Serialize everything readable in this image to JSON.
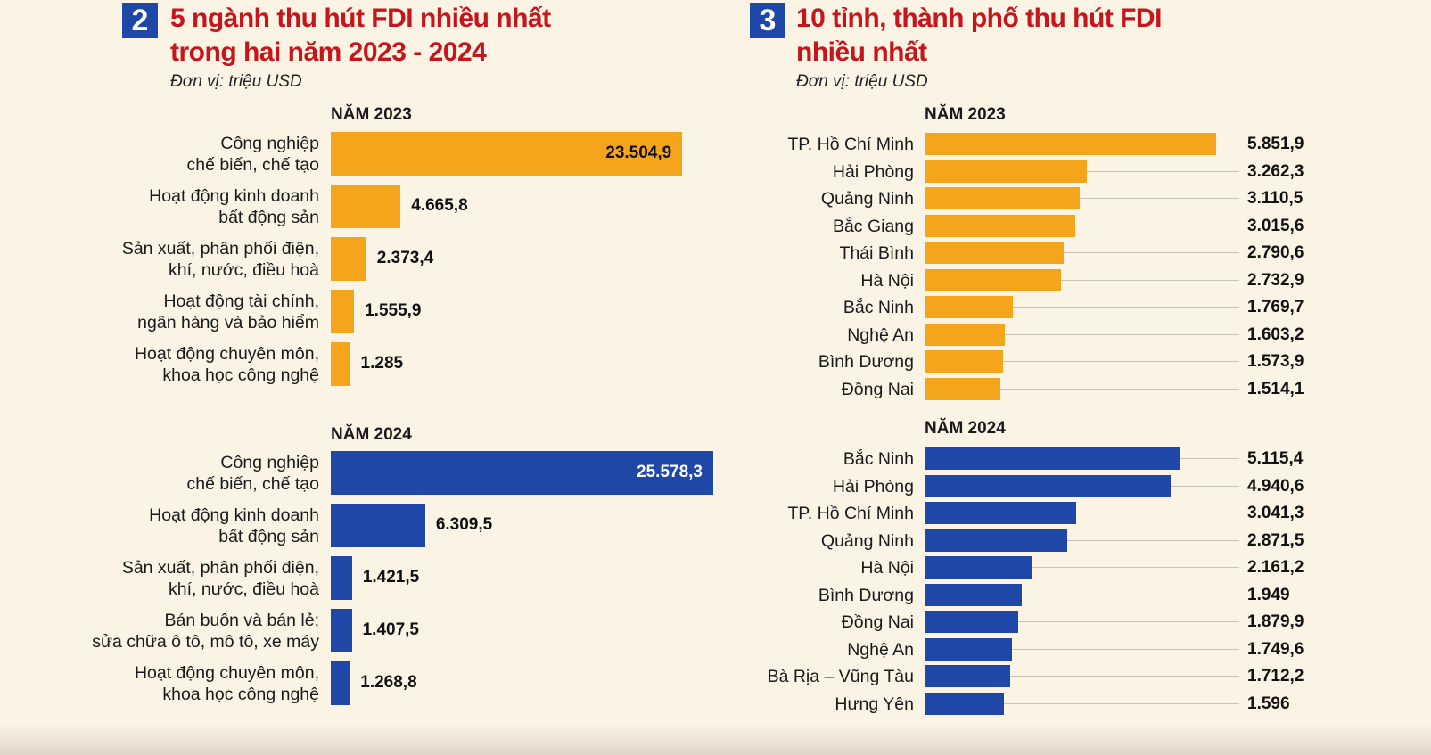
{
  "colors": {
    "y2023": "#f5a51c",
    "y2024": "#1f47a8",
    "title": "#c4161c"
  },
  "left_panel": {
    "number": "2",
    "title_line1": "5 ngành thu hút FDI nhiều nhất",
    "title_line2": "trong hai năm 2023 - 2024",
    "unit": "Đơn vị: triệu USD"
  },
  "right_panel": {
    "number": "3",
    "title_line1": "10 tỉnh, thành phố thu hút FDI",
    "title_line2": "nhiều nhất",
    "unit": "Đơn vị: triệu USD"
  },
  "chart_data": [
    {
      "type": "bar",
      "orientation": "horizontal",
      "title": "NĂM 2023",
      "unit": "triệu USD",
      "categories": [
        [
          "Công nghiệp",
          "chế biến, chế tạo"
        ],
        [
          "Hoạt động kinh doanh",
          "bất động sản"
        ],
        [
          "Sản xuất, phân phối điện,",
          "khí, nước, điều hoà"
        ],
        [
          "Hoạt động tài chính,",
          "ngân hàng và bảo hiểm"
        ],
        [
          "Hoạt động chuyên môn,",
          "khoa học công nghệ"
        ]
      ],
      "values": [
        23504.9,
        4665.8,
        2373.4,
        1555.9,
        1285
      ],
      "labels": [
        "23.504,9",
        "4.665,8",
        "2.373,4",
        "1.555,9",
        "1.285"
      ],
      "color": "#f5a51c",
      "xlim": [
        0,
        26000
      ]
    },
    {
      "type": "bar",
      "orientation": "horizontal",
      "title": "NĂM 2024",
      "unit": "triệu USD",
      "categories": [
        [
          "Công nghiệp",
          "chế biến, chế tạo"
        ],
        [
          "Hoạt động kinh doanh",
          "bất động sản"
        ],
        [
          "Sản xuất, phân phối điện,",
          "khí, nước, điều hoà"
        ],
        [
          "Bán buôn và bán lẻ;",
          "sửa chữa ô tô, mô tô, xe máy"
        ],
        [
          "Hoạt động chuyên môn,",
          "khoa học công nghệ"
        ]
      ],
      "values": [
        25578.3,
        6309.5,
        1421.5,
        1407.5,
        1268.8
      ],
      "labels": [
        "25.578,3",
        "6.309,5",
        "1.421,5",
        "1.407,5",
        "1.268,8"
      ],
      "color": "#1f47a8",
      "xlim": [
        0,
        26000
      ]
    },
    {
      "type": "bar",
      "orientation": "horizontal",
      "title": "NĂM 2023",
      "unit": "triệu USD",
      "categories": [
        "TP. Hồ Chí Minh",
        "Hải Phòng",
        "Quảng Ninh",
        "Bắc Giang",
        "Thái Bình",
        "Hà Nội",
        "Bắc Ninh",
        "Nghệ An",
        "Bình Dương",
        "Đồng Nai"
      ],
      "values": [
        5851.9,
        3262.3,
        3110.5,
        3015.6,
        2790.6,
        2732.9,
        1769.7,
        1603.2,
        1573.9,
        1514.1
      ],
      "labels": [
        "5.851,9",
        "3.262,3",
        "3.110,5",
        "3.015,6",
        "2.790,6",
        "2.732,9",
        "1.769,7",
        "1.603,2",
        "1.573,9",
        "1.514,1"
      ],
      "color": "#f5a51c"
    },
    {
      "type": "bar",
      "orientation": "horizontal",
      "title": "NĂM 2024",
      "unit": "triệu USD",
      "categories": [
        "Bắc Ninh",
        "Hải Phòng",
        "TP. Hồ Chí Minh",
        "Quảng Ninh",
        "Hà Nội",
        "Bình Dương",
        "Đồng Nai",
        "Nghệ An",
        "Bà Rịa – Vũng Tàu",
        "Hưng Yên"
      ],
      "values": [
        5115.4,
        4940.6,
        3041.3,
        2871.5,
        2161.2,
        1949,
        1879.9,
        1749.6,
        1712.2,
        1596
      ],
      "labels": [
        "5.115,4",
        "4.940,6",
        "3.041,3",
        "2.871,5",
        "2.161,2",
        "1.949",
        "1.879,9",
        "1.749,6",
        "1.712,2",
        "1.596"
      ],
      "color": "#1f47a8"
    }
  ]
}
